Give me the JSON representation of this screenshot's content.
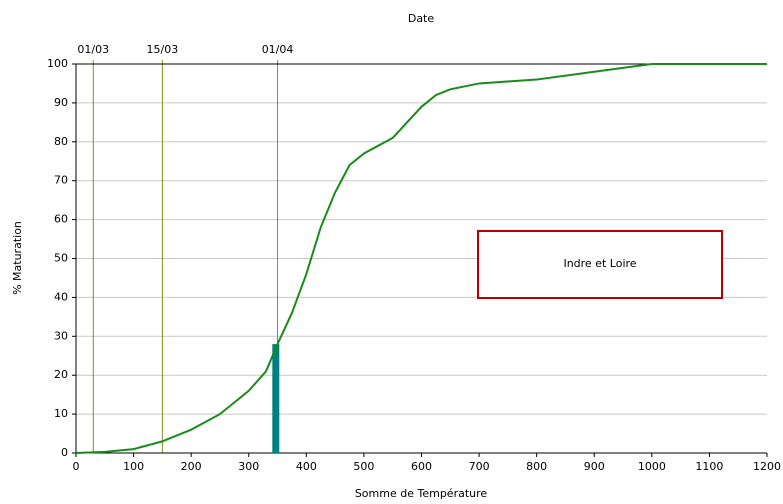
{
  "chart_data": {
    "type": "line",
    "x_label": "Somme de Température",
    "y_label": "% Maturation",
    "top_label": "Date",
    "annotation": "Indre et Loire",
    "x": [
      0,
      50,
      100,
      150,
      200,
      250,
      300,
      330,
      350,
      375,
      400,
      425,
      450,
      475,
      500,
      525,
      550,
      575,
      600,
      625,
      650,
      700,
      800,
      900,
      1000,
      1200
    ],
    "values": [
      0,
      0.3,
      1,
      3,
      6,
      10,
      16,
      21,
      28,
      36,
      46,
      58,
      67,
      74,
      77,
      79,
      81,
      85,
      89,
      92,
      93.5,
      95,
      96,
      98,
      100,
      100
    ],
    "color": "#1a8a1a",
    "marker": {
      "x": 347,
      "value": 28,
      "color": "#008080"
    },
    "xlim": [
      0,
      1200
    ],
    "xticks": [
      0,
      100,
      200,
      300,
      400,
      500,
      600,
      700,
      800,
      900,
      1000,
      1100,
      1200
    ],
    "ylim": [
      0,
      100
    ],
    "yticks": [
      0,
      10,
      20,
      30,
      40,
      50,
      60,
      70,
      80,
      90,
      100
    ],
    "date_ticks": [
      {
        "value": 30,
        "label": "01/03"
      },
      {
        "value": 150,
        "label": "15/03"
      },
      {
        "value": 350,
        "label": "01/04"
      }
    ],
    "date_line_color": "#8b8b1a",
    "grid": true
  }
}
